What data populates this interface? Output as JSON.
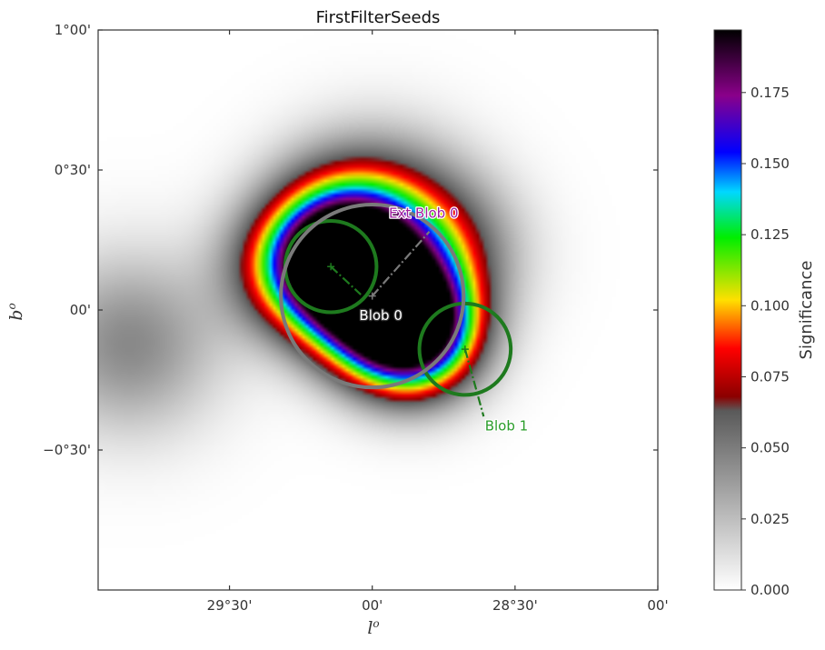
{
  "chart_data": {
    "type": "heatmap",
    "title": "FirstFilterSeeds",
    "xlabel": "l",
    "xlabel_sup": "o",
    "ylabel": "b",
    "ylabel_sup": "o",
    "x_ticks": [
      "29°30'",
      "00'",
      "28°30'",
      "00'"
    ],
    "y_ticks": [
      "1°00'",
      "0°30'",
      "00'",
      "−0°30'"
    ],
    "xlim_deg": [
      29.96,
      28.0
    ],
    "ylim_deg": [
      -1.0,
      1.0
    ],
    "colorbar": {
      "label": "Significance",
      "range": [
        0.0,
        0.197
      ],
      "ticks": [
        "0.000",
        "0.025",
        "0.050",
        "0.075",
        "0.100",
        "0.125",
        "0.150",
        "0.175"
      ],
      "tick_values": [
        0.0,
        0.025,
        0.05,
        0.075,
        0.1,
        0.125,
        0.15,
        0.175
      ],
      "colormap_stops": [
        {
          "v": 0.0,
          "color": "#ffffff"
        },
        {
          "v": 0.063,
          "color": "#5a5a5a"
        },
        {
          "v": 0.068,
          "color": "#8b0000"
        },
        {
          "v": 0.085,
          "color": "#ff0000"
        },
        {
          "v": 0.102,
          "color": "#ffe000"
        },
        {
          "v": 0.124,
          "color": "#00ee00"
        },
        {
          "v": 0.14,
          "color": "#00d8ff"
        },
        {
          "v": 0.154,
          "color": "#0000ff"
        },
        {
          "v": 0.174,
          "color": "#8a008a"
        },
        {
          "v": 0.197,
          "color": "#000000"
        }
      ]
    },
    "sources": [
      {
        "l": 28.95,
        "b": 0.33,
        "sigma": 0.2,
        "amp": 0.06
      },
      {
        "l": 28.75,
        "b": 0.2,
        "sigma": 0.18,
        "amp": 0.055
      },
      {
        "l": 29.85,
        "b": -0.12,
        "sigma": 0.22,
        "amp": 0.045
      },
      {
        "l": 29.3,
        "b": 0.15,
        "sigma": 0.16,
        "amp": 0.06
      },
      {
        "l": 29.1,
        "b": 0.15,
        "sigma": 0.16,
        "amp": 0.19
      },
      {
        "l": 29.12,
        "b": 0.18,
        "sigma": 0.08,
        "amp": 0.05
      },
      {
        "l": 28.98,
        "b": 0.0,
        "sigma": 0.16,
        "amp": 0.14
      },
      {
        "l": 28.85,
        "b": -0.08,
        "sigma": 0.15,
        "amp": 0.19
      },
      {
        "l": 29.12,
        "b": 0.3,
        "sigma": 0.18,
        "amp": 0.06
      }
    ],
    "annotations": [
      {
        "label": "Blob 0",
        "center": [
          29.145,
          0.155
        ],
        "radius_deg": 0.16,
        "color": "#1e7a1e",
        "text_color": "#ffffff",
        "stroke_color": "#333333",
        "label_pos": [
          28.97,
          -0.035
        ],
        "line_to": [
          29.04,
          0.055
        ]
      },
      {
        "label": "Blob 1",
        "center": [
          28.675,
          -0.14
        ],
        "radius_deg": 0.16,
        "color": "#1e7a1e",
        "text_color": "#2a9d2a",
        "stroke_color": "#ffffff",
        "label_pos": [
          28.53,
          -0.43
        ],
        "line_to": [
          28.61,
          -0.38
        ]
      },
      {
        "label": "Ext Blob 0",
        "center": [
          29.0,
          0.05
        ],
        "radius_deg": 0.32,
        "color": "#7a7a7a",
        "text_color": "#a020a0",
        "stroke_color": "#ffffff",
        "label_pos": [
          28.82,
          0.33
        ],
        "line_to": [
          28.8,
          0.28
        ]
      }
    ]
  }
}
